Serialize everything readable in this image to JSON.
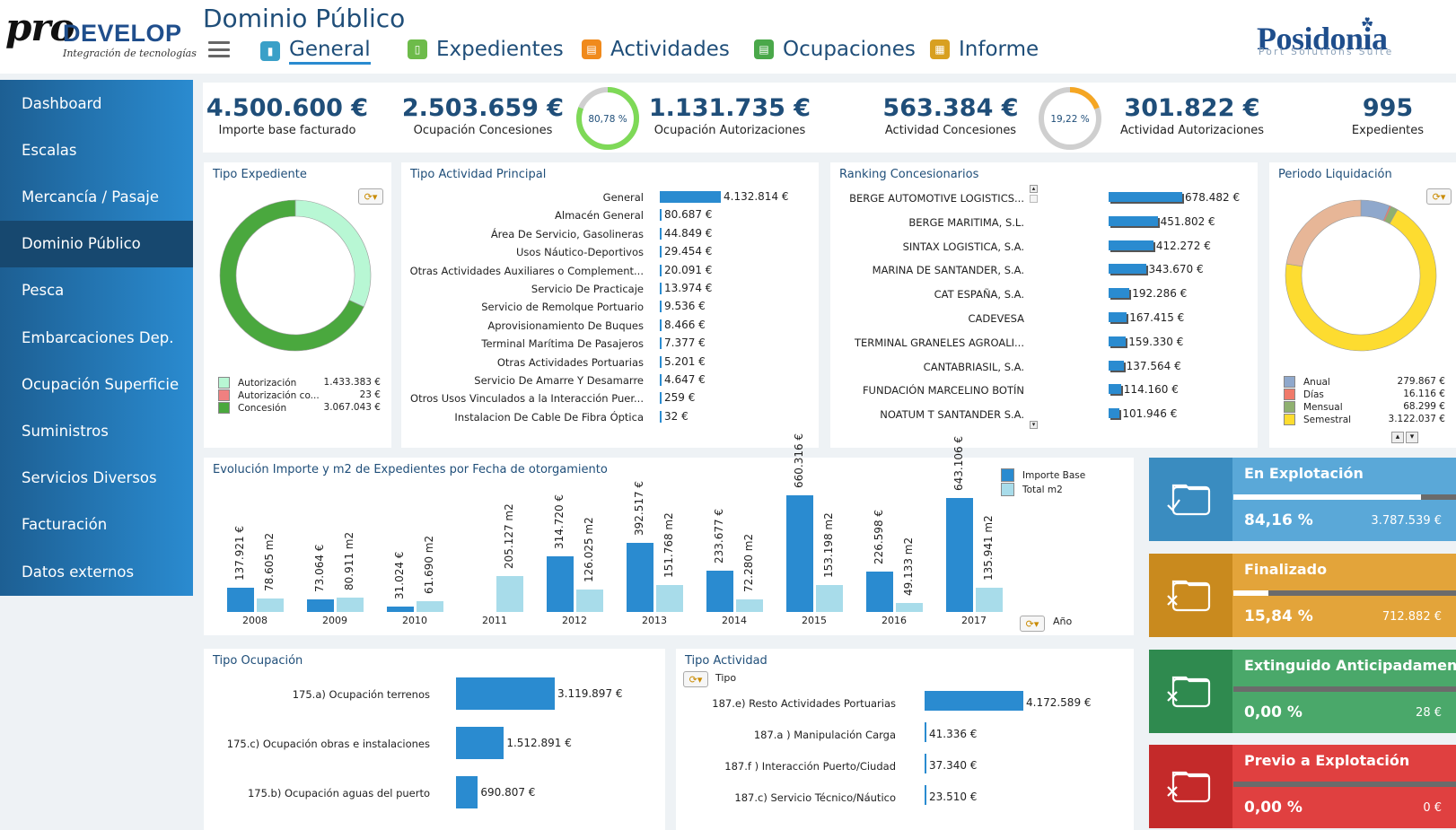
{
  "header": {
    "logo_main": "pro",
    "logo_brand": "DEVELOP",
    "logo_tagline": "Integración de tecnologías",
    "page_title": "Dominio Público",
    "posidonia_brand": "Posidonia",
    "posidonia_sub": "Port Solutions Suite",
    "tabs": [
      {
        "label": "General",
        "icon": "bar-chart-icon",
        "color": "#3aa0c8",
        "active": true
      },
      {
        "label": "Expedientes",
        "icon": "book-icon",
        "color": "#6dbb4a",
        "active": false
      },
      {
        "label": "Actividades",
        "icon": "document-icon",
        "color": "#f08a1c",
        "active": false
      },
      {
        "label": "Ocupaciones",
        "icon": "document-icon",
        "color": "#4aa84a",
        "active": false
      },
      {
        "label": "Informe",
        "icon": "grid-icon",
        "color": "#d8a020",
        "active": false
      }
    ]
  },
  "sidebar": {
    "items": [
      {
        "label": "Dashboard"
      },
      {
        "label": "Escalas"
      },
      {
        "label": "Mercancía / Pasaje"
      },
      {
        "label": "Dominio Público",
        "active": true
      },
      {
        "label": "Pesca"
      },
      {
        "label": "Embarcaciones Dep."
      },
      {
        "label": "Ocupación Superficie"
      },
      {
        "label": "Suministros"
      },
      {
        "label": "Servicios Diversos"
      },
      {
        "label": "Facturación"
      },
      {
        "label": "Datos externos"
      }
    ]
  },
  "kpis": [
    {
      "value": "4.500.600 €",
      "label": "Importe base facturado"
    },
    {
      "value": "2.503.659 €",
      "label": "Ocupación Concesiones"
    },
    {
      "value": "1.131.735 €",
      "label": "Ocupación Autorizaciones"
    },
    {
      "value": "563.384 €",
      "label": "Actividad Concesiones"
    },
    {
      "value": "301.822 €",
      "label": "Actividad Autorizaciones"
    },
    {
      "value": "995",
      "label": "Expedientes"
    }
  ],
  "gauges": [
    {
      "text": "80,78 %",
      "fraction": 0.8078,
      "color": "#7ed957"
    },
    {
      "text": "19,22 %",
      "fraction": 0.1922,
      "color": "#f5a623"
    }
  ],
  "tipo_expediente": {
    "title": "Tipo Expediente",
    "legend": [
      {
        "name": "Autorización",
        "value": "1.433.383 €",
        "num": 1433383,
        "color": "#b8f7d4"
      },
      {
        "name": "Autorización co...",
        "value": "23 €",
        "num": 23,
        "color": "#f08080"
      },
      {
        "name": "Concesión",
        "value": "3.067.043 €",
        "num": 3067043,
        "color": "#4aa83e"
      }
    ]
  },
  "tipo_actividad_principal": {
    "title": "Tipo Actividad Principal",
    "rows": [
      {
        "label": "General",
        "value": "4.132.814 €",
        "num": 4132814
      },
      {
        "label": "Almacén General",
        "value": "80.687 €",
        "num": 80687
      },
      {
        "label": "Área De Servicio, Gasolineras",
        "value": "44.849 €",
        "num": 44849
      },
      {
        "label": "Usos Náutico-Deportivos",
        "value": "29.454 €",
        "num": 29454
      },
      {
        "label": "Otras Actividades Auxiliares o Complement...",
        "value": "20.091 €",
        "num": 20091
      },
      {
        "label": "Servicio De Practicaje",
        "value": "13.974 €",
        "num": 13974
      },
      {
        "label": "Servicio de Remolque Portuario",
        "value": "9.536 €",
        "num": 9536
      },
      {
        "label": "Aprovisionamiento De Buques",
        "value": "8.466 €",
        "num": 8466
      },
      {
        "label": "Terminal Marítima De Pasajeros",
        "value": "7.377 €",
        "num": 7377
      },
      {
        "label": "Otras Actividades Portuarias",
        "value": "5.201 €",
        "num": 5201
      },
      {
        "label": "Servicio De Amarre Y Desamarre",
        "value": "4.647 €",
        "num": 4647
      },
      {
        "label": "Otros Usos Vinculados a la Interacción Puer...",
        "value": "259 €",
        "num": 259
      },
      {
        "label": "Instalacion De Cable De Fibra Óptica",
        "value": "32 €",
        "num": 32
      }
    ]
  },
  "ranking": {
    "title": "Ranking Concesionarios",
    "rows": [
      {
        "label": "BERGE AUTOMOTIVE LOGISTICS...",
        "value": "678.482 €",
        "num": 678482
      },
      {
        "label": "BERGE MARITIMA, S.L.",
        "value": "451.802 €",
        "num": 451802
      },
      {
        "label": "SINTAX LOGISTICA, S.A.",
        "value": "412.272 €",
        "num": 412272
      },
      {
        "label": "MARINA DE SANTANDER, S.A.",
        "value": "343.670 €",
        "num": 343670
      },
      {
        "label": "CAT ESPAÑA, S.A.",
        "value": "192.286 €",
        "num": 192286
      },
      {
        "label": "CADEVESA",
        "value": "167.415 €",
        "num": 167415
      },
      {
        "label": "TERMINAL GRANELES AGROALI...",
        "value": "159.330 €",
        "num": 159330
      },
      {
        "label": "CANTABRIASIL, S.A.",
        "value": "137.564 €",
        "num": 137564
      },
      {
        "label": "FUNDACIÓN MARCELINO BOTÍN",
        "value": "114.160 €",
        "num": 114160
      },
      {
        "label": "NOATUM T SANTANDER S.A.",
        "value": "101.946 €",
        "num": 101946
      }
    ]
  },
  "periodo": {
    "title": "Periodo Liquidación",
    "legend": [
      {
        "name": "Anual",
        "value": "279.867 €",
        "num": 279867,
        "color": "#8fa8cc"
      },
      {
        "name": "Días",
        "value": "16.116 €",
        "num": 16116,
        "color": "#f07a6a"
      },
      {
        "name": "Mensual",
        "value": "68.299 €",
        "num": 68299,
        "color": "#8fb070"
      },
      {
        "name": "Semestral",
        "value": "3.122.037 €",
        "num": 3122037,
        "color": "#fddc30"
      }
    ],
    "unlisted_slice": {
      "num": 1014281,
      "color": "#e7b697"
    }
  },
  "evolucion": {
    "title": "Evolución Importe y m2 de Expedientes por Fecha de otorgamiento",
    "legend": [
      {
        "name": "Importe Base",
        "color": "#2a8bd0"
      },
      {
        "name": "Total m2",
        "color": "#a8dcea"
      }
    ],
    "axis_label": "Año",
    "chart_data": {
      "type": "bar",
      "categories": [
        "2008",
        "2009",
        "2010",
        "2011",
        "2012",
        "2013",
        "2014",
        "2015",
        "2016",
        "2017"
      ],
      "series": [
        {
          "name": "Importe Base",
          "values": [
            137921,
            73064,
            31024,
            null,
            314720,
            392517,
            233677,
            660316,
            226598,
            643106
          ],
          "labels": [
            "137.921 €",
            "73.064 €",
            "31.024 €",
            "",
            "314.720 €",
            "392.517 €",
            "233.677 €",
            "660.316 €",
            "226.598 €",
            "643.106 €"
          ]
        },
        {
          "name": "Total m2",
          "values": [
            78605,
            80911,
            61690,
            205127,
            126025,
            151768,
            72280,
            153198,
            49133,
            135941
          ],
          "labels": [
            "78.605 m2",
            "80.911 m2",
            "61.690 m2",
            "205.127 m2",
            "126.025 m2",
            "151.768 m2",
            "72.280 m2",
            "153.198 m2",
            "49.133 m2",
            "135.941 m2"
          ]
        }
      ]
    }
  },
  "status_cards": [
    {
      "title": "En Explotación",
      "pct": "84,16 %",
      "amount": "3.787.539 €",
      "fraction": 0.8416,
      "color": "#5aa8d8",
      "dark": "#3a8cc0",
      "icon": "folder-check-icon"
    },
    {
      "title": "Finalizado",
      "pct": "15,84 %",
      "amount": "712.882 €",
      "fraction": 0.1584,
      "color": "#e3a43a",
      "dark": "#c98a1e",
      "icon": "folder-x-icon"
    },
    {
      "title": "Extinguido Anticipadamente",
      "pct": "0,00 %",
      "amount": "28 €",
      "fraction": 0,
      "color": "#4aa86a",
      "dark": "#2f8a4f",
      "icon": "stopwatch-x-icon"
    },
    {
      "title": "Previo a Explotación",
      "pct": "0,00 %",
      "amount": "0 €",
      "fraction": 0,
      "color": "#e04040",
      "dark": "#c42a2a",
      "icon": "calendar-clock-icon"
    }
  ],
  "tipo_ocupacion": {
    "title": "Tipo Ocupación",
    "rows": [
      {
        "label": "175.a) Ocupación terrenos",
        "value": "3.119.897 €",
        "num": 3119897
      },
      {
        "label": "175.c) Ocupación obras e instalaciones",
        "value": "1.512.891 €",
        "num": 1512891
      },
      {
        "label": "175.b) Ocupación aguas del puerto",
        "value": "690.807 €",
        "num": 690807
      }
    ]
  },
  "tipo_actividad": {
    "title": "Tipo Actividad",
    "selector_label": "Tipo",
    "rows": [
      {
        "label": "187.e) Resto Actividades Portuarias",
        "value": "4.172.589 €",
        "num": 4172589
      },
      {
        "label": "187.a ) Manipulación Carga",
        "value": "41.336 €",
        "num": 41336
      },
      {
        "label": "187.f ) Interacción Puerto/Ciudad",
        "value": "37.340 €",
        "num": 37340
      },
      {
        "label": "187.c) Servicio Técnico/Náutico",
        "value": "23.510 €",
        "num": 23510
      }
    ]
  }
}
